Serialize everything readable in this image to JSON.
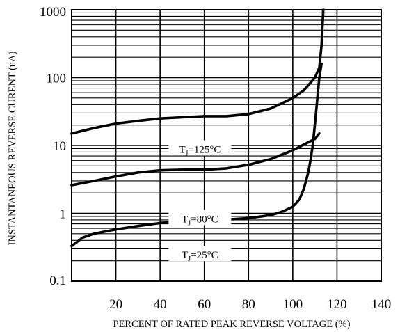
{
  "chart_data": {
    "type": "line",
    "title": "",
    "xlabel": "PERCENT OF RATED PEAK REVERSE VOLTAGE (%)",
    "ylabel": "INSTANTANEOUS REVERSE CURENT (uA)",
    "xlim": [
      0,
      140
    ],
    "ylim": [
      0.1,
      1000
    ],
    "yscale": "log",
    "x_ticks": [
      20,
      40,
      60,
      80,
      100,
      120,
      140
    ],
    "x_tick_labels": [
      "20",
      "40",
      "60",
      "80",
      "100",
      "120",
      "140"
    ],
    "y_ticks": [
      0.1,
      1,
      10,
      100,
      1000
    ],
    "y_tick_labels": [
      "0.1",
      "1",
      "10",
      "100",
      "1000"
    ],
    "grid": true,
    "series": [
      {
        "label_parts": [
          "T",
          "J",
          "=125°C"
        ],
        "label_x": 58,
        "label_y": 9,
        "x": [
          0,
          10,
          20,
          30,
          40,
          50,
          60,
          70,
          80,
          90,
          100,
          105,
          110,
          112,
          113,
          113.8
        ],
        "y": [
          15,
          18,
          21,
          23,
          25,
          26,
          27,
          27,
          29,
          35,
          50,
          65,
          100,
          140,
          300,
          1000
        ]
      },
      {
        "label_parts": [
          "T",
          "J",
          "=80°C"
        ],
        "label_x": 58,
        "label_y": 0.85,
        "x": [
          0,
          10,
          20,
          30,
          40,
          50,
          60,
          70,
          80,
          90,
          100,
          110,
          112
        ],
        "y": [
          2.6,
          3.0,
          3.5,
          4.0,
          4.3,
          4.4,
          4.4,
          4.6,
          5.2,
          6.3,
          8.5,
          12.5,
          15
        ]
      },
      {
        "label_parts": [
          "T",
          "J",
          "=25°C"
        ],
        "label_x": 58,
        "label_y": 0.25,
        "x": [
          0,
          5,
          10,
          20,
          30,
          40,
          50,
          60,
          70,
          80,
          90,
          95,
          100,
          103,
          105,
          107,
          108,
          109,
          110,
          111,
          112,
          113
        ],
        "y": [
          0.33,
          0.44,
          0.5,
          0.58,
          0.65,
          0.72,
          0.77,
          0.79,
          0.81,
          0.85,
          0.94,
          1.05,
          1.25,
          1.6,
          2.3,
          4,
          6,
          10,
          20,
          45,
          100,
          160
        ]
      }
    ]
  }
}
